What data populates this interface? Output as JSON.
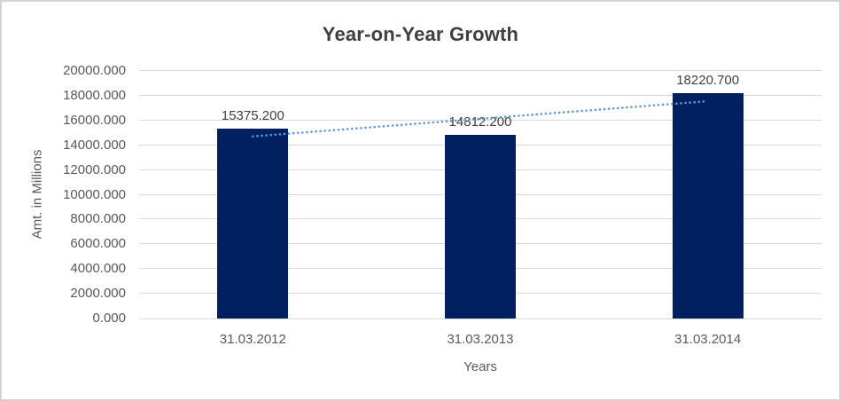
{
  "chart_data": {
    "type": "bar",
    "title": "Year-on-Year Growth",
    "xlabel": "Years",
    "ylabel": "Amt. in Millions",
    "categories": [
      "31.03.2012",
      "31.03.2013",
      "31.03.2014"
    ],
    "values": [
      15375.2,
      14812.2,
      18220.7
    ],
    "data_labels": [
      "15375.200",
      "14812.200",
      "18220.700"
    ],
    "ylim": [
      0,
      20000
    ],
    "ytick_step": 2000,
    "ytick_labels": [
      "0.000",
      "2000.000",
      "4000.000",
      "6000.000",
      "8000.000",
      "10000.000",
      "12000.000",
      "14000.000",
      "16000.000",
      "18000.000",
      "20000.000"
    ],
    "grid": true,
    "legend": "none",
    "trendline": {
      "type": "linear",
      "style": "dotted"
    },
    "colors": {
      "bar": "#002060",
      "trendline": "#5b9bd5",
      "gridline": "#d9d9d9",
      "title_text": "#3f3f3f",
      "tick_text": "#595959",
      "label_text": "#404040",
      "frame_border": "#d3d3d3"
    }
  }
}
